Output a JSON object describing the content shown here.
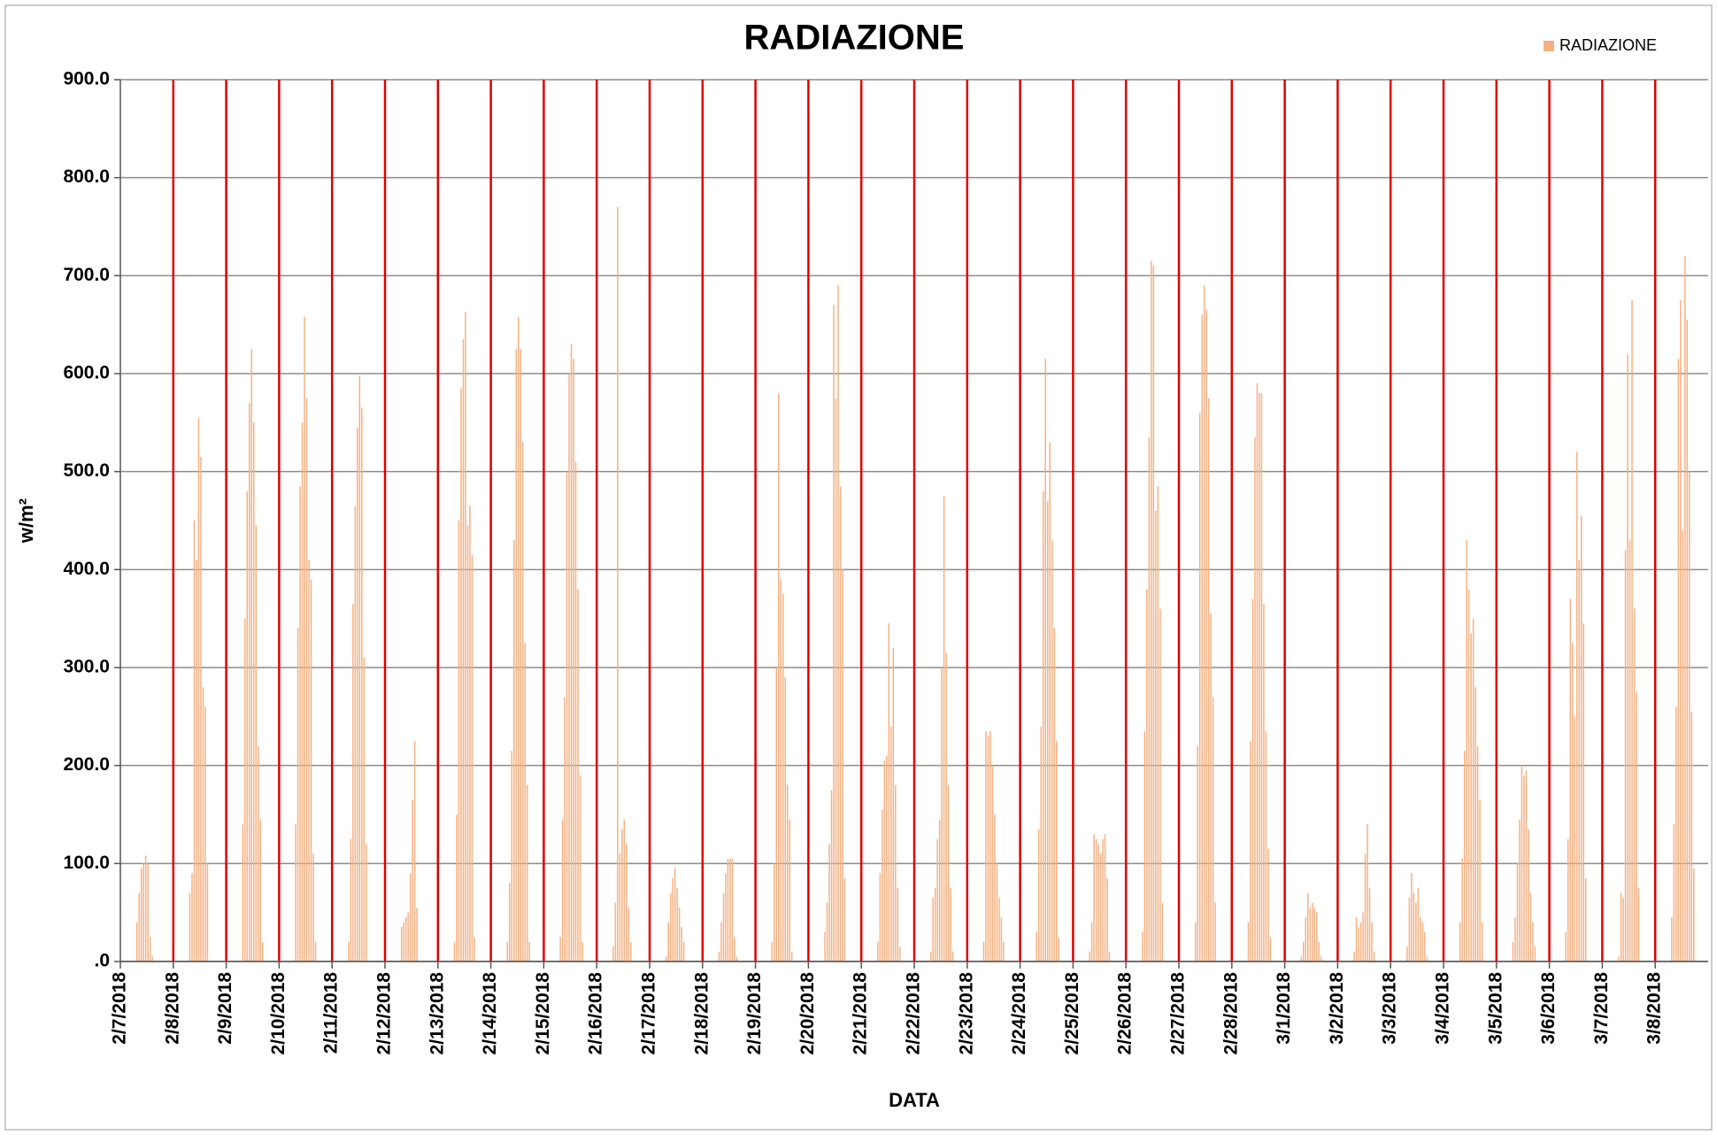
{
  "chart_data": {
    "type": "bar",
    "title": "RADIAZIONE",
    "x_label": "DATA",
    "y_label": "w/m²",
    "legend_position": "upper right",
    "grid": true,
    "day_line_color": "#e00000",
    "ylim": [
      0,
      900
    ],
    "yticks": [
      {
        "value": 0,
        "label": ".0"
      },
      {
        "value": 100,
        "label": "100.0"
      },
      {
        "value": 200,
        "label": "200.0"
      },
      {
        "value": 300,
        "label": "300.0"
      },
      {
        "value": 400,
        "label": "400.0"
      },
      {
        "value": 500,
        "label": "500.0"
      },
      {
        "value": 600,
        "label": "600.0"
      },
      {
        "value": 700,
        "label": "700.0"
      },
      {
        "value": 800,
        "label": "800.0"
      },
      {
        "value": 900,
        "label": "900.0"
      }
    ],
    "categories": [
      "2/7/2018",
      null,
      null,
      null,
      null,
      null,
      null,
      null,
      null,
      null,
      null,
      null,
      null,
      null,
      null,
      null,
      null,
      null,
      null,
      null,
      null,
      null,
      null,
      null,
      "2/8/2018",
      null,
      null,
      null,
      null,
      null,
      null,
      null,
      null,
      null,
      null,
      null,
      null,
      null,
      null,
      null,
      null,
      null,
      null,
      null,
      null,
      null,
      null,
      null,
      "2/9/2018",
      null,
      null,
      null,
      null,
      null,
      null,
      null,
      null,
      null,
      null,
      null,
      null,
      null,
      null,
      null,
      null,
      null,
      null,
      null,
      null,
      null,
      null,
      null,
      "2/10/2018",
      null,
      null,
      null,
      null,
      null,
      null,
      null,
      null,
      null,
      null,
      null,
      null,
      null,
      null,
      null,
      null,
      null,
      null,
      null,
      null,
      null,
      null,
      null,
      "2/11/2018",
      null,
      null,
      null,
      null,
      null,
      null,
      null,
      null,
      null,
      null,
      null,
      null,
      null,
      null,
      null,
      null,
      null,
      null,
      null,
      null,
      null,
      null,
      null,
      "2/12/2018",
      null,
      null,
      null,
      null,
      null,
      null,
      null,
      null,
      null,
      null,
      null,
      null,
      null,
      null,
      null,
      null,
      null,
      null,
      null,
      null,
      null,
      null,
      null,
      "2/13/2018",
      null,
      null,
      null,
      null,
      null,
      null,
      null,
      null,
      null,
      null,
      null,
      null,
      null,
      null,
      null,
      null,
      null,
      null,
      null,
      null,
      null,
      null,
      null,
      "2/14/2018",
      null,
      null,
      null,
      null,
      null,
      null,
      null,
      null,
      null,
      null,
      null,
      null,
      null,
      null,
      null,
      null,
      null,
      null,
      null,
      null,
      null,
      null,
      null,
      "2/15/2018",
      null,
      null,
      null,
      null,
      null,
      null,
      null,
      null,
      null,
      null,
      null,
      null,
      null,
      null,
      null,
      null,
      null,
      null,
      null,
      null,
      null,
      null,
      null,
      "2/16/2018",
      null,
      null,
      null,
      null,
      null,
      null,
      null,
      null,
      null,
      null,
      null,
      null,
      null,
      null,
      null,
      null,
      null,
      null,
      null,
      null,
      null,
      null,
      null,
      "2/17/2018",
      null,
      null,
      null,
      null,
      null,
      null,
      null,
      null,
      null,
      null,
      null,
      null,
      null,
      null,
      null,
      null,
      null,
      null,
      null,
      null,
      null,
      null,
      null,
      "2/18/2018",
      null,
      null,
      null,
      null,
      null,
      null,
      null,
      null,
      null,
      null,
      null,
      null,
      null,
      null,
      null,
      null,
      null,
      null,
      null,
      null,
      null,
      null,
      null,
      "2/19/2018",
      null,
      null,
      null,
      null,
      null,
      null,
      null,
      null,
      null,
      null,
      null,
      null,
      null,
      null,
      null,
      null,
      null,
      null,
      null,
      null,
      null,
      null,
      null,
      "2/20/2018",
      null,
      null,
      null,
      null,
      null,
      null,
      null,
      null,
      null,
      null,
      null,
      null,
      null,
      null,
      null,
      null,
      null,
      null,
      null,
      null,
      null,
      null,
      null,
      "2/21/2018",
      null,
      null,
      null,
      null,
      null,
      null,
      null,
      null,
      null,
      null,
      null,
      null,
      null,
      null,
      null,
      null,
      null,
      null,
      null,
      null,
      null,
      null,
      null,
      "2/22/2018",
      null,
      null,
      null,
      null,
      null,
      null,
      null,
      null,
      null,
      null,
      null,
      null,
      null,
      null,
      null,
      null,
      null,
      null,
      null,
      null,
      null,
      null,
      null,
      "2/23/2018",
      null,
      null,
      null,
      null,
      null,
      null,
      null,
      null,
      null,
      null,
      null,
      null,
      null,
      null,
      null,
      null,
      null,
      null,
      null,
      null,
      null,
      null,
      null,
      "2/24/2018",
      null,
      null,
      null,
      null,
      null,
      null,
      null,
      null,
      null,
      null,
      null,
      null,
      null,
      null,
      null,
      null,
      null,
      null,
      null,
      null,
      null,
      null,
      null,
      "2/25/2018",
      null,
      null,
      null,
      null,
      null,
      null,
      null,
      null,
      null,
      null,
      null,
      null,
      null,
      null,
      null,
      null,
      null,
      null,
      null,
      null,
      null,
      null,
      null,
      "2/26/2018",
      null,
      null,
      null,
      null,
      null,
      null,
      null,
      null,
      null,
      null,
      null,
      null,
      null,
      null,
      null,
      null,
      null,
      null,
      null,
      null,
      null,
      null,
      null,
      "2/27/2018",
      null,
      null,
      null,
      null,
      null,
      null,
      null,
      null,
      null,
      null,
      null,
      null,
      null,
      null,
      null,
      null,
      null,
      null,
      null,
      null,
      null,
      null,
      null,
      "2/28/2018",
      null,
      null,
      null,
      null,
      null,
      null,
      null,
      null,
      null,
      null,
      null,
      null,
      null,
      null,
      null,
      null,
      null,
      null,
      null,
      null,
      null,
      null,
      null,
      "3/1/2018",
      null,
      null,
      null,
      null,
      null,
      null,
      null,
      null,
      null,
      null,
      null,
      null,
      null,
      null,
      null,
      null,
      null,
      null,
      null,
      null,
      null,
      null,
      null,
      "3/2/2018",
      null,
      null,
      null,
      null,
      null,
      null,
      null,
      null,
      null,
      null,
      null,
      null,
      null,
      null,
      null,
      null,
      null,
      null,
      null,
      null,
      null,
      null,
      null,
      "3/3/2018",
      null,
      null,
      null,
      null,
      null,
      null,
      null,
      null,
      null,
      null,
      null,
      null,
      null,
      null,
      null,
      null,
      null,
      null,
      null,
      null,
      null,
      null,
      null,
      "3/4/2018",
      null,
      null,
      null,
      null,
      null,
      null,
      null,
      null,
      null,
      null,
      null,
      null,
      null,
      null,
      null,
      null,
      null,
      null,
      null,
      null,
      null,
      null,
      null,
      "3/5/2018",
      null,
      null,
      null,
      null,
      null,
      null,
      null,
      null,
      null,
      null,
      null,
      null,
      null,
      null,
      null,
      null,
      null,
      null,
      null,
      null,
      null,
      null,
      null,
      "3/6/2018",
      null,
      null,
      null,
      null,
      null,
      null,
      null,
      null,
      null,
      null,
      null,
      null,
      null,
      null,
      null,
      null,
      null,
      null,
      null,
      null,
      null,
      null,
      null,
      "3/7/2018",
      null,
      null,
      null,
      null,
      null,
      null,
      null,
      null,
      null,
      null,
      null,
      null,
      null,
      null,
      null,
      null,
      null,
      null,
      null,
      null,
      null,
      null,
      null,
      "3/8/2018",
      null,
      null,
      null,
      null,
      null,
      null,
      null,
      null,
      null,
      null,
      null,
      null,
      null,
      null,
      null,
      null,
      null,
      null,
      null,
      null,
      null,
      null,
      null
    ],
    "series": [
      {
        "name": "RADIAZIONE",
        "color": "#f4b183",
        "values": [
          0,
          0,
          0,
          0,
          0,
          0,
          0,
          40,
          70,
          95,
          100,
          108,
          100,
          25,
          5,
          0,
          0,
          0,
          0,
          0,
          0,
          0,
          0,
          0,
          0,
          0,
          0,
          0,
          0,
          0,
          0,
          70,
          90,
          450,
          410,
          555,
          515,
          280,
          260,
          100,
          0,
          0,
          0,
          0,
          0,
          0,
          0,
          0,
          0,
          0,
          0,
          0,
          0,
          0,
          0,
          140,
          350,
          480,
          570,
          625,
          550,
          445,
          220,
          145,
          20,
          0,
          0,
          0,
          0,
          0,
          0,
          0,
          0,
          0,
          0,
          0,
          0,
          0,
          0,
          140,
          340,
          485,
          550,
          658,
          575,
          410,
          390,
          110,
          20,
          0,
          0,
          0,
          0,
          0,
          0,
          0,
          0,
          0,
          0,
          0,
          0,
          0,
          0,
          20,
          125,
          365,
          465,
          545,
          598,
          565,
          310,
          120,
          0,
          0,
          0,
          0,
          0,
          0,
          0,
          0,
          0,
          0,
          0,
          0,
          0,
          0,
          0,
          35,
          40,
          45,
          50,
          90,
          165,
          225,
          55,
          0,
          0,
          0,
          0,
          0,
          0,
          0,
          0,
          0,
          0,
          0,
          0,
          0,
          0,
          0,
          0,
          20,
          150,
          450,
          585,
          635,
          663,
          445,
          465,
          415,
          25,
          0,
          0,
          0,
          0,
          0,
          0,
          0,
          0,
          0,
          0,
          0,
          0,
          0,
          0,
          20,
          80,
          215,
          430,
          625,
          658,
          625,
          530,
          325,
          180,
          20,
          0,
          0,
          0,
          0,
          0,
          0,
          0,
          0,
          0,
          0,
          0,
          0,
          0,
          25,
          145,
          270,
          500,
          600,
          630,
          615,
          510,
          380,
          190,
          20,
          0,
          0,
          0,
          0,
          0,
          0,
          0,
          0,
          0,
          0,
          0,
          0,
          0,
          15,
          60,
          770,
          110,
          135,
          145,
          120,
          55,
          20,
          0,
          0,
          0,
          0,
          0,
          0,
          0,
          0,
          0,
          0,
          0,
          0,
          0,
          0,
          0,
          5,
          40,
          70,
          85,
          95,
          75,
          55,
          35,
          20,
          0,
          0,
          0,
          0,
          0,
          0,
          0,
          0,
          0,
          0,
          0,
          0,
          0,
          0,
          0,
          10,
          40,
          70,
          90,
          105,
          105,
          105,
          25,
          5,
          0,
          0,
          0,
          0,
          0,
          0,
          0,
          0,
          0,
          0,
          0,
          0,
          0,
          0,
          0,
          20,
          100,
          300,
          580,
          390,
          375,
          290,
          180,
          145,
          10,
          0,
          0,
          0,
          0,
          0,
          0,
          0,
          0,
          0,
          0,
          0,
          0,
          0,
          0,
          30,
          60,
          120,
          175,
          670,
          575,
          690,
          485,
          400,
          85,
          0,
          0,
          0,
          0,
          0,
          0,
          0,
          0,
          0,
          0,
          0,
          0,
          0,
          0,
          20,
          90,
          155,
          205,
          210,
          345,
          240,
          320,
          180,
          75,
          15,
          0,
          0,
          0,
          0,
          0,
          0,
          0,
          0,
          0,
          0,
          0,
          0,
          0,
          10,
          65,
          75,
          125,
          145,
          300,
          475,
          315,
          180,
          75,
          10,
          0,
          0,
          0,
          0,
          0,
          0,
          0,
          0,
          0,
          0,
          0,
          0,
          0,
          20,
          235,
          230,
          235,
          200,
          150,
          100,
          65,
          45,
          20,
          0,
          0,
          0,
          0,
          0,
          0,
          0,
          0,
          0,
          0,
          0,
          0,
          0,
          0,
          30,
          135,
          240,
          480,
          615,
          470,
          530,
          430,
          340,
          225,
          25,
          0,
          0,
          0,
          0,
          0,
          0,
          0,
          0,
          0,
          0,
          0,
          0,
          0,
          10,
          40,
          130,
          125,
          120,
          110,
          125,
          130,
          85,
          10,
          0,
          0,
          0,
          0,
          0,
          0,
          0,
          0,
          0,
          0,
          0,
          0,
          0,
          0,
          30,
          235,
          380,
          535,
          715,
          710,
          460,
          485,
          360,
          60,
          0,
          0,
          0,
          0,
          0,
          0,
          0,
          0,
          0,
          0,
          0,
          0,
          0,
          0,
          40,
          220,
          560,
          660,
          690,
          665,
          575,
          355,
          270,
          60,
          0,
          0,
          0,
          0,
          0,
          0,
          0,
          0,
          0,
          0,
          0,
          0,
          0,
          0,
          40,
          225,
          370,
          535,
          590,
          580,
          580,
          365,
          235,
          115,
          25,
          0,
          0,
          0,
          0,
          0,
          0,
          0,
          0,
          0,
          0,
          0,
          0,
          0,
          5,
          20,
          45,
          70,
          55,
          60,
          55,
          50,
          20,
          5,
          0,
          0,
          0,
          0,
          0,
          0,
          0,
          0,
          0,
          0,
          0,
          0,
          0,
          0,
          10,
          45,
          35,
          40,
          50,
          110,
          140,
          75,
          40,
          10,
          0,
          0,
          0,
          0,
          0,
          0,
          0,
          0,
          0,
          0,
          0,
          0,
          0,
          0,
          15,
          65,
          90,
          70,
          60,
          75,
          45,
          40,
          30,
          5,
          0,
          0,
          0,
          0,
          0,
          0,
          0,
          0,
          0,
          0,
          0,
          0,
          0,
          0,
          40,
          105,
          215,
          430,
          380,
          335,
          350,
          280,
          220,
          165,
          40,
          0,
          0,
          0,
          0,
          0,
          0,
          0,
          0,
          0,
          0,
          0,
          0,
          0,
          20,
          45,
          100,
          145,
          200,
          190,
          195,
          135,
          70,
          40,
          15,
          0,
          0,
          0,
          0,
          0,
          0,
          0,
          0,
          0,
          0,
          0,
          0,
          0,
          30,
          125,
          370,
          325,
          250,
          520,
          410,
          455,
          345,
          85,
          0,
          0,
          0,
          0,
          0,
          0,
          0,
          0,
          0,
          0,
          0,
          0,
          0,
          0,
          5,
          70,
          65,
          420,
          620,
          430,
          675,
          360,
          275,
          75,
          0,
          0,
          0,
          0,
          0,
          0,
          0,
          0,
          0,
          0,
          0,
          0,
          0,
          0,
          45,
          140,
          260,
          615,
          675,
          440,
          720,
          655,
          500,
          255,
          95,
          0,
          0,
          0,
          0,
          0,
          0
        ]
      }
    ]
  }
}
